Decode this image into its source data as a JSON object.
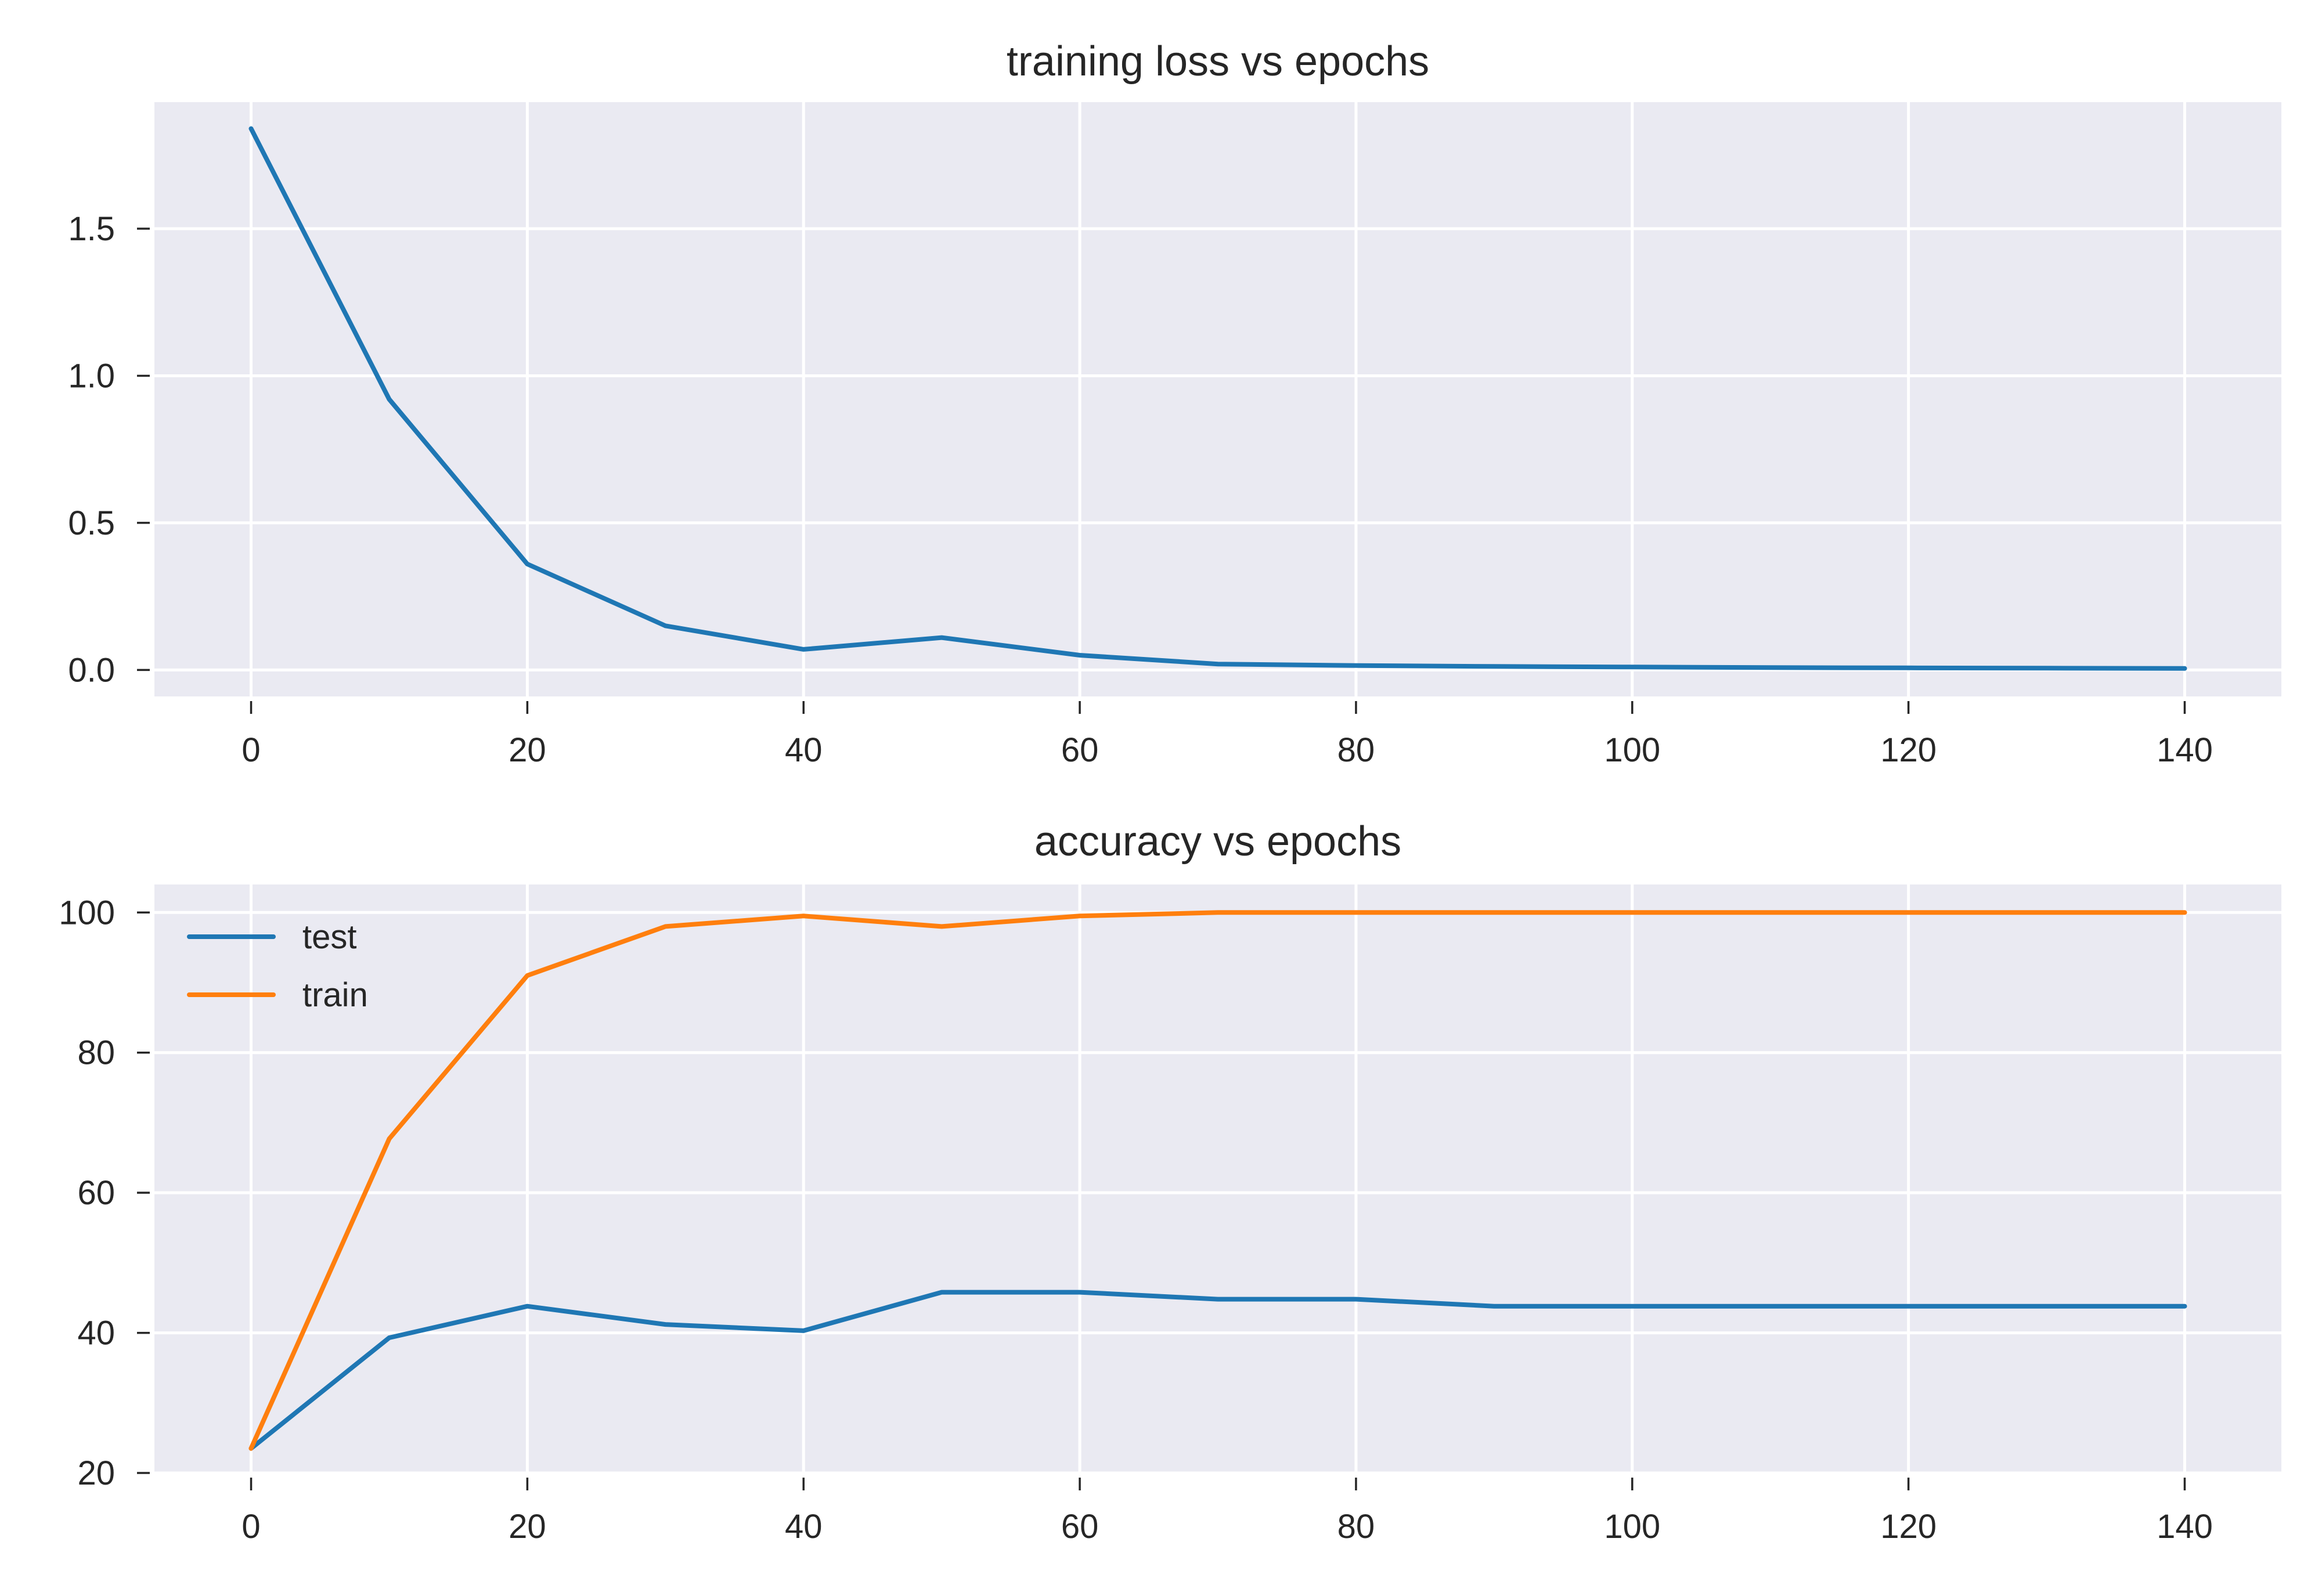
{
  "chart_data": [
    {
      "type": "line",
      "title": "training loss vs epochs",
      "xlabel": "",
      "ylabel": "",
      "xlim": [
        -7,
        147
      ],
      "ylim": [
        -0.09,
        1.93
      ],
      "xticks": [
        0,
        20,
        40,
        60,
        80,
        100,
        120,
        140
      ],
      "yticks": [
        0.0,
        0.5,
        1.0,
        1.5
      ],
      "xtick_labels": [
        "0",
        "20",
        "40",
        "60",
        "80",
        "100",
        "120",
        "140"
      ],
      "ytick_labels": [
        "0.0",
        "0.5",
        "1.0",
        "1.5"
      ],
      "grid": true,
      "legend": null,
      "x": [
        0,
        10,
        20,
        30,
        40,
        50,
        60,
        70,
        80,
        90,
        100,
        110,
        120,
        130,
        140
      ],
      "series": [
        {
          "name": "",
          "color": "#1f77b4",
          "values": [
            1.84,
            0.92,
            0.36,
            0.15,
            0.07,
            0.11,
            0.05,
            0.02,
            0.015,
            0.012,
            0.01,
            0.008,
            0.007,
            0.006,
            0.005
          ]
        }
      ]
    },
    {
      "type": "line",
      "title": "accuracy vs epochs",
      "xlabel": "",
      "ylabel": "",
      "xlim": [
        -7,
        147
      ],
      "ylim": [
        20,
        104
      ],
      "xticks": [
        0,
        20,
        40,
        60,
        80,
        100,
        120,
        140
      ],
      "yticks": [
        20,
        40,
        60,
        80,
        100
      ],
      "xtick_labels": [
        "0",
        "20",
        "40",
        "60",
        "80",
        "100",
        "120",
        "140"
      ],
      "ytick_labels": [
        "20",
        "40",
        "60",
        "80",
        "100"
      ],
      "grid": true,
      "legend": "top-left",
      "x": [
        0,
        10,
        20,
        30,
        40,
        50,
        60,
        70,
        80,
        90,
        100,
        110,
        120,
        130,
        140
      ],
      "series": [
        {
          "name": "test",
          "color": "#1f77b4",
          "values": [
            23.5,
            39.3,
            43.8,
            41.2,
            40.3,
            45.8,
            45.8,
            44.8,
            44.8,
            43.8,
            43.8,
            43.8,
            43.8,
            43.8,
            43.8
          ]
        },
        {
          "name": "train",
          "color": "#ff7f0e",
          "values": [
            23.5,
            67.7,
            91.0,
            98.0,
            99.5,
            98.0,
            99.5,
            100,
            100,
            100,
            100,
            100,
            100,
            100,
            100
          ]
        }
      ]
    }
  ]
}
